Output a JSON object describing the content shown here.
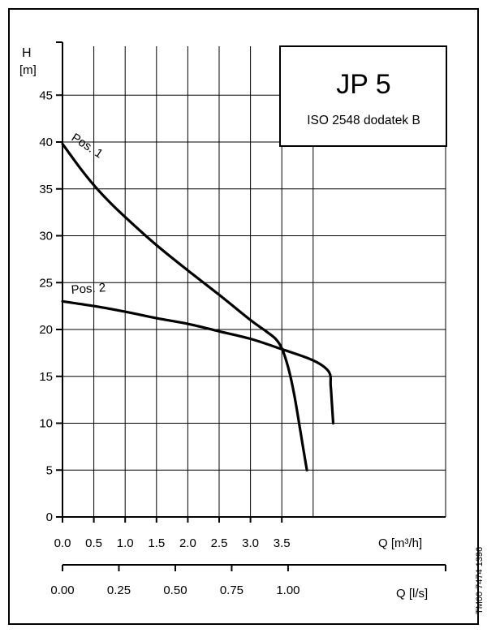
{
  "chart_data": {
    "type": "line",
    "title": "JP 5",
    "subtitle": "ISO 2548 dodatek B",
    "ylabel": "H",
    "ylabel_unit": "[m]",
    "xlabel_primary": "Q [m³/h]",
    "xlabel_secondary": "Q [l/s]",
    "ylim": [
      0,
      47.5
    ],
    "y_ticks": [
      "0",
      "5",
      "10",
      "15",
      "20",
      "25",
      "30",
      "35",
      "40",
      "45"
    ],
    "y_tick_values": [
      0,
      5,
      10,
      15,
      20,
      25,
      30,
      35,
      40,
      45
    ],
    "xlim": [
      0,
      4.5
    ],
    "x_ticks": [
      "0.0",
      "0.5",
      "1.0",
      "1.5",
      "2.0",
      "2.5",
      "3.0",
      "3.5"
    ],
    "x_tick_values": [
      0,
      0.5,
      1.0,
      1.5,
      2.0,
      2.5,
      3.0,
      3.5
    ],
    "x2_ticks": [
      "0.00",
      "0.25",
      "0.50",
      "0.75",
      "1.00"
    ],
    "x2_tick_values_ls": [
      0,
      0.25,
      0.5,
      0.75,
      1.0
    ],
    "grid": true,
    "series": [
      {
        "name": "Pos. 1",
        "x": [
          0.0,
          0.25,
          0.5,
          0.75,
          1.0,
          1.5,
          2.0,
          2.5,
          3.0,
          3.25,
          3.4,
          3.5,
          3.6,
          3.7,
          3.8,
          3.85,
          3.9
        ],
        "y": [
          39.8,
          37.5,
          35.4,
          33.6,
          32.0,
          29.0,
          26.3,
          23.7,
          21.0,
          19.8,
          19.0,
          18.0,
          16.0,
          13.0,
          9.0,
          7.0,
          5.0
        ]
      },
      {
        "name": "Pos. 2",
        "x": [
          0.0,
          0.5,
          1.0,
          1.5,
          2.0,
          2.5,
          3.0,
          3.5,
          4.0,
          4.25,
          4.28,
          4.3,
          4.32
        ],
        "y": [
          23.0,
          22.5,
          21.9,
          21.2,
          20.6,
          19.8,
          19.0,
          17.9,
          16.7,
          15.5,
          14.0,
          12.0,
          10.0
        ]
      }
    ]
  },
  "side_code": "TM00 7474 1396"
}
